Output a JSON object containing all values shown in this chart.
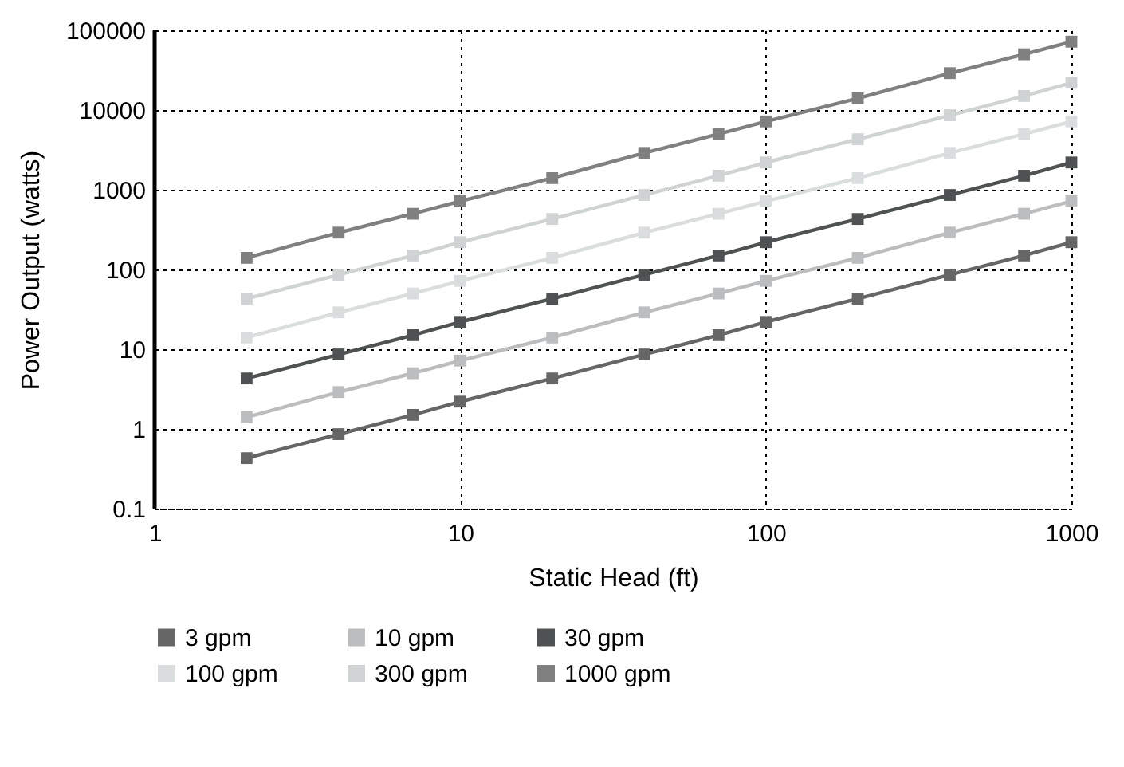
{
  "chart_data": {
    "type": "line",
    "xlabel": "Static Head (ft)",
    "ylabel": "Power Output (watts)",
    "x": [
      2,
      4,
      7,
      10,
      20,
      40,
      70,
      100,
      200,
      400,
      700,
      1000
    ],
    "series": [
      {
        "name": "3 gpm",
        "color": "#666666",
        "values": [
          0.43,
          0.86,
          1.5,
          2.2,
          4.3,
          8.6,
          15,
          22,
          43,
          86,
          150,
          220
        ]
      },
      {
        "name": "10 gpm",
        "color": "#bbbdbf",
        "values": [
          1.4,
          2.9,
          5.0,
          7.2,
          14,
          29,
          50,
          72,
          140,
          290,
          500,
          720
        ]
      },
      {
        "name": "30 gpm",
        "color": "#4f5253",
        "values": [
          4.3,
          8.6,
          15,
          22,
          43,
          86,
          150,
          220,
          430,
          860,
          1500,
          2200
        ]
      },
      {
        "name": "100 gpm",
        "color": "#dadddd",
        "values": [
          14,
          29,
          50,
          72,
          140,
          290,
          500,
          720,
          1400,
          2900,
          5000,
          7200
        ]
      },
      {
        "name": "300 gpm",
        "color": "#d0d3d3",
        "values": [
          43,
          86,
          150,
          220,
          430,
          860,
          1500,
          2200,
          4300,
          8600,
          15000,
          22000
        ]
      },
      {
        "name": "1000 gpm",
        "color": "#808080",
        "values": [
          140,
          290,
          500,
          720,
          1400,
          2900,
          5000,
          7200,
          14000,
          29000,
          50000,
          72000
        ]
      }
    ],
    "log": "xy",
    "xlim": [
      1,
      1000
    ],
    "ylim": [
      0.1,
      100000
    ],
    "xticks": [
      1,
      10,
      100,
      1000
    ],
    "yticks": [
      0.1,
      1,
      10,
      100,
      1000,
      10000,
      100000
    ],
    "grid": true,
    "legend": "bottom",
    "marker": "square",
    "line_style": "solid"
  }
}
